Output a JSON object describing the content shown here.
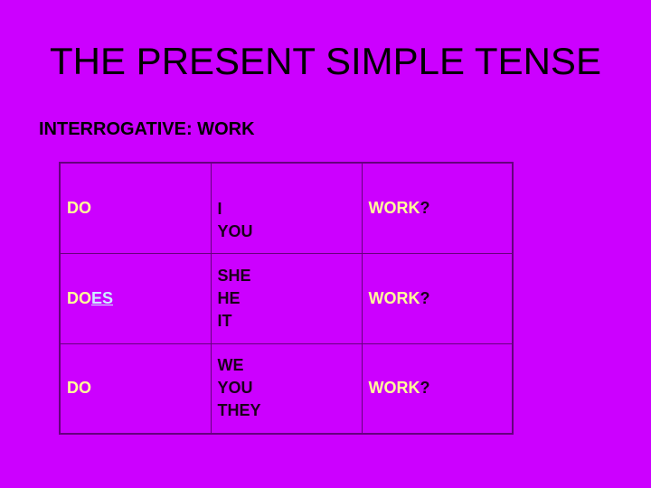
{
  "title": "THE PRESENT SIMPLE TENSE",
  "subtitle": "INTERROGATIVE: WORK",
  "colors": {
    "background": "#cc00ff",
    "highlight": "#ffff99",
    "ending": "#ccecff"
  },
  "rows": [
    {
      "aux": "DO",
      "aux_ending": "",
      "pronouns": [
        "I",
        "YOU"
      ],
      "verb": "WORK",
      "mark": "?"
    },
    {
      "aux": "DO",
      "aux_ending": "ES",
      "pronouns": [
        "SHE",
        "HE",
        "IT"
      ],
      "verb": "WORK",
      "mark": "?"
    },
    {
      "aux": "DO",
      "aux_ending": "",
      "pronouns": [
        "WE",
        "YOU",
        "THEY"
      ],
      "verb": "WORK",
      "mark": "?"
    }
  ]
}
